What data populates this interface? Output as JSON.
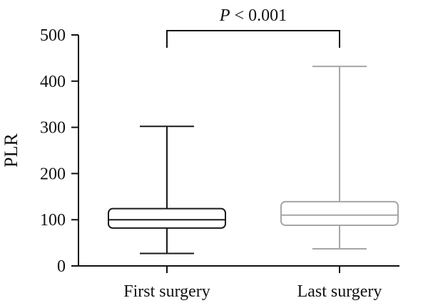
{
  "chart_data": {
    "type": "boxplot",
    "ylabel": "PLR",
    "ylim": [
      0,
      500
    ],
    "yticks": [
      0,
      100,
      200,
      300,
      400,
      500
    ],
    "categories": [
      "First surgery",
      "Last surgery"
    ],
    "boxes": [
      {
        "category": "First surgery",
        "min": 27,
        "q1": 82,
        "median": 100,
        "q3": 124,
        "max": 302,
        "color": "#1a1a1a"
      },
      {
        "category": "Last surgery",
        "min": 37,
        "q1": 88,
        "median": 110,
        "q3": 139,
        "max": 432,
        "color": "#a6a6a6"
      }
    ],
    "annotation": {
      "p_symbol": "P",
      "text": "< 0.001",
      "between": [
        "First surgery",
        "Last surgery"
      ],
      "level": 500
    },
    "grid": false
  }
}
